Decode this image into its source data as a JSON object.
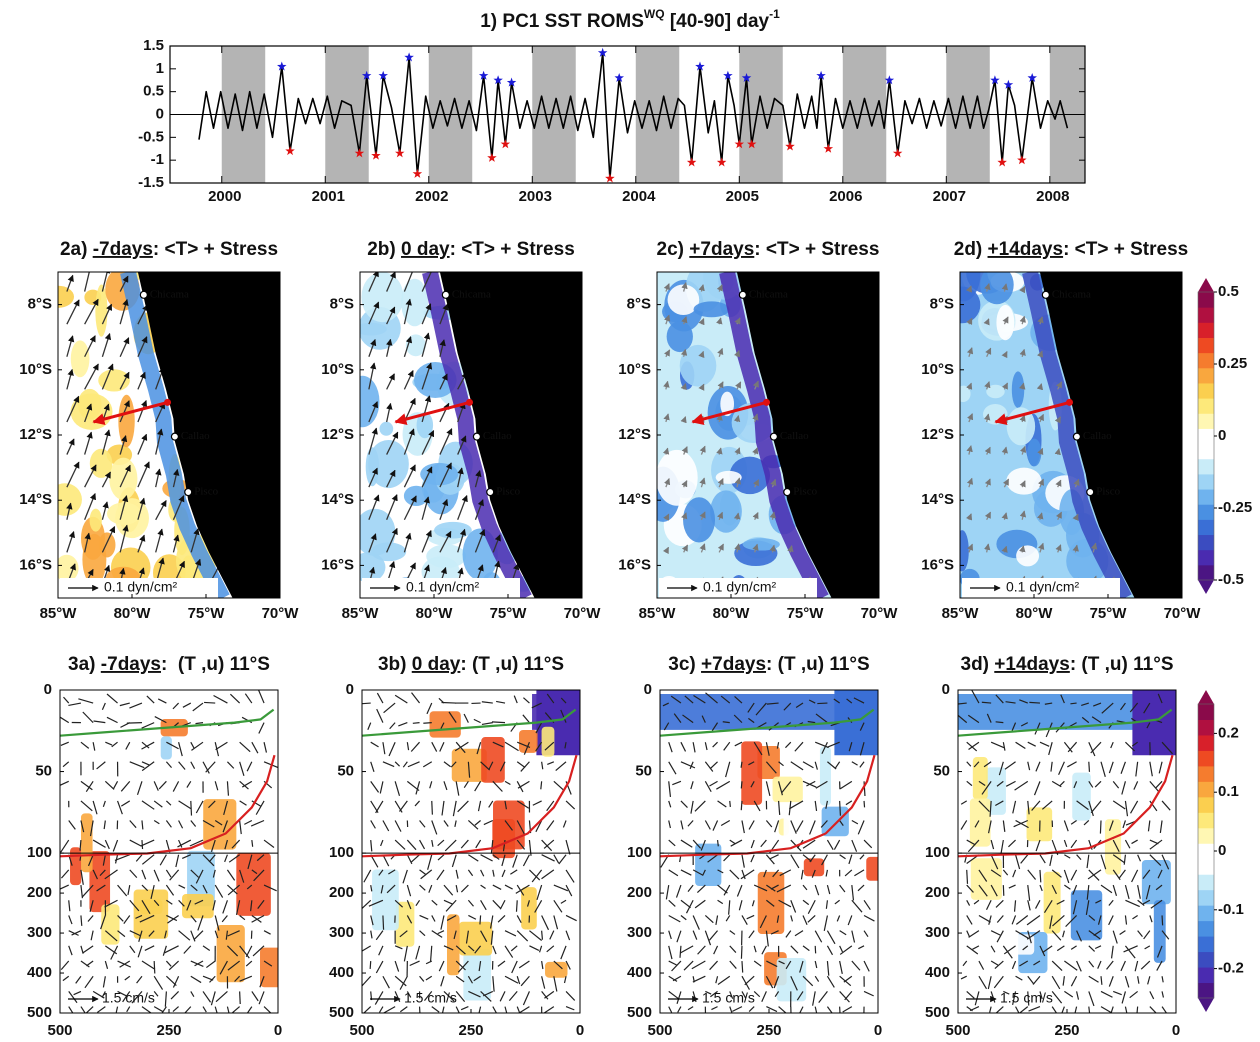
{
  "chart_data": [
    {
      "type": "line",
      "title": "1) PC1 SST ROMS",
      "title_sup": "WQ",
      "title_end": " [40-90] day",
      "title_sup2": "-1",
      "xlim": [
        1999.5,
        2008.34
      ],
      "ylim": [
        -1.5,
        1.5
      ],
      "xticks": [
        2000,
        2001,
        2002,
        2003,
        2004,
        2005,
        2006,
        2007,
        2008
      ],
      "yticks": [
        -1.5,
        -1,
        -0.5,
        0,
        0.5,
        1,
        1.5
      ],
      "shaded": [
        [
          2000,
          2000.42
        ],
        [
          2001,
          2001.42
        ],
        [
          2002,
          2002.42
        ],
        [
          2003,
          2003.42
        ],
        [
          2004,
          2004.42
        ],
        [
          2005,
          2005.42
        ],
        [
          2006,
          2006.42
        ],
        [
          2007,
          2007.42
        ],
        [
          2008,
          2008.34
        ]
      ],
      "shade_color": "#b4b4b4",
      "series": [
        {
          "color": "#000000",
          "x": [
            1999.78,
            1999.85,
            1999.92,
            1999.99,
            2000.06,
            2000.13,
            2000.2,
            2000.27,
            2000.34,
            2000.41,
            2000.49,
            2000.58,
            2000.66,
            2000.74,
            2000.81,
            2000.88,
            2000.95,
            2001.02,
            2001.09,
            2001.16,
            2001.25,
            2001.33,
            2001.4,
            2001.49,
            2001.56,
            2001.64,
            2001.72,
            2001.81,
            2001.89,
            2001.97,
            2002.04,
            2002.11,
            2002.18,
            2002.25,
            2002.32,
            2002.39,
            2002.46,
            2002.53,
            2002.61,
            2002.67,
            2002.74,
            2002.8,
            2002.88,
            2002.95,
            2003.02,
            2003.09,
            2003.16,
            2003.23,
            2003.3,
            2003.37,
            2003.44,
            2003.51,
            2003.59,
            2003.68,
            2003.75,
            2003.84,
            2003.92,
            2003.99,
            2004.06,
            2004.13,
            2004.2,
            2004.27,
            2004.34,
            2004.41,
            2004.47,
            2004.54,
            2004.62,
            2004.7,
            2004.76,
            2004.83,
            2004.89,
            2004.95,
            2005,
            2005.07,
            2005.12,
            2005.2,
            2005.27,
            2005.34,
            2005.42,
            2005.49,
            2005.56,
            2005.63,
            2005.7,
            2005.75,
            2005.79,
            2005.86,
            2005.93,
            2006,
            2006.07,
            2006.14,
            2006.21,
            2006.28,
            2006.35,
            2006.4,
            2006.45,
            2006.53,
            2006.6,
            2006.67,
            2006.74,
            2006.81,
            2006.88,
            2006.95,
            2007.02,
            2007.09,
            2007.16,
            2007.23,
            2007.3,
            2007.36,
            2007.41,
            2007.47,
            2007.54,
            2007.6,
            2007.66,
            2007.73,
            2007.83,
            2007.91,
            2007.98,
            2008.05,
            2008.1,
            2008.17
          ],
          "values": [
            -0.55,
            0.5,
            -0.3,
            0.5,
            -0.3,
            0.45,
            -0.35,
            0.5,
            -0.3,
            0.45,
            -0.5,
            1.05,
            -0.8,
            0.35,
            -0.2,
            0.35,
            -0.2,
            0.4,
            -0.3,
            0.3,
            0.2,
            -0.85,
            0.85,
            -0.9,
            0.85,
            0.15,
            -0.85,
            1.25,
            -1.3,
            0.4,
            -0.3,
            0.3,
            -0.25,
            0.35,
            -0.3,
            0.3,
            -0.35,
            0.85,
            -0.95,
            0.75,
            -0.65,
            0.7,
            -0.3,
            0.3,
            -0.3,
            0.4,
            -0.3,
            0.35,
            -0.3,
            0.4,
            -0.35,
            0.35,
            -0.5,
            1.35,
            -1.4,
            0.8,
            -0.4,
            0.3,
            -0.3,
            0.3,
            -0.35,
            0.4,
            -0.3,
            0.35,
            0.2,
            -1.05,
            1.05,
            -0.4,
            0.3,
            -1.05,
            0.85,
            0.2,
            -0.65,
            0.8,
            -0.65,
            0.4,
            -0.3,
            0.35,
            0.2,
            -0.7,
            0.45,
            -0.3,
            0.4,
            -0.3,
            0.85,
            -0.75,
            0.35,
            -0.3,
            0.3,
            -0.3,
            0.35,
            -0.25,
            0.3,
            -0.3,
            0.75,
            -0.85,
            0.3,
            -0.2,
            0.35,
            -0.3,
            0.3,
            -0.25,
            0.35,
            -0.3,
            0.4,
            -0.3,
            0.4,
            -0.3,
            0.1,
            0.75,
            -1.05,
            0.65,
            0.2,
            -1.0,
            0.8,
            -0.3,
            0.3,
            -0.1,
            0.3,
            -0.3
          ]
        },
        {
          "color": "#1a1ad6",
          "marker": "star",
          "x": [
            2000.58,
            2001.4,
            2001.56,
            2001.81,
            2002.53,
            2002.67,
            2002.8,
            2003.68,
            2003.84,
            2004.62,
            2004.89,
            2005.07,
            2005.79,
            2006.45,
            2007.47,
            2007.6,
            2007.83
          ],
          "values": [
            1.05,
            0.85,
            0.85,
            1.25,
            0.85,
            0.75,
            0.7,
            1.35,
            0.8,
            1.05,
            0.85,
            0.8,
            0.85,
            0.75,
            0.75,
            0.65,
            0.8
          ]
        },
        {
          "color": "#e01010",
          "marker": "star",
          "x": [
            2000.66,
            2001.33,
            2001.49,
            2001.72,
            2001.89,
            2002.61,
            2002.74,
            2003.75,
            2004.54,
            2004.83,
            2005,
            2005.12,
            2005.49,
            2005.86,
            2006.53,
            2007.54,
            2007.73
          ],
          "values": [
            -0.8,
            -0.85,
            -0.9,
            -0.85,
            -1.3,
            -0.95,
            -0.65,
            -1.4,
            -1.05,
            -1.05,
            -0.65,
            -0.65,
            -0.7,
            -0.75,
            -0.85,
            -1.05,
            -1.0
          ]
        }
      ]
    },
    {
      "type": "map",
      "panels": [
        {
          "label": "2a) ",
          "lag": "-7days",
          "rest": ": <T> + Stress"
        },
        {
          "label": "2b) ",
          "lag": "0 day",
          "rest": ": <T> + Stress"
        },
        {
          "label": "2c) ",
          "lag": "+7days",
          "rest": ": <T> + Stress"
        },
        {
          "label": "2d) ",
          "lag": "+14days",
          "rest": ": <T> + Stress"
        }
      ],
      "xlim": [
        -85,
        -70
      ],
      "ylim": [
        -7,
        -17
      ],
      "xticks": [
        {
          "value": -85,
          "label": "85°W"
        },
        {
          "value": -80,
          "label": "80°W"
        },
        {
          "value": -75,
          "label": "75°W"
        },
        {
          "value": -70,
          "label": "70°W"
        }
      ],
      "yticks": [
        {
          "value": -8,
          "label": "8°S"
        },
        {
          "value": -10,
          "label": "10°S"
        },
        {
          "value": -12,
          "label": "12°S"
        },
        {
          "value": -14,
          "label": "14°S"
        },
        {
          "value": -16,
          "label": "16°S"
        }
      ],
      "places": [
        {
          "name": "Chicama",
          "lon": -79.2,
          "lat": -7.7
        },
        {
          "name": "Callao",
          "lon": -77.1,
          "lat": -12.05
        },
        {
          "name": "Pisco",
          "lon": -76.2,
          "lat": -13.75
        }
      ],
      "scale_label": "0.1 dyn/cm²",
      "colorbar": {
        "lim": [
          -0.5,
          0.5
        ],
        "ticks": [
          -0.5,
          -0.25,
          0,
          0.25,
          0.5
        ],
        "colors": [
          "#4b1583",
          "#4a2bb0",
          "#3b4cc0",
          "#3a6fd6",
          "#4a90e2",
          "#6fb3ee",
          "#9ed4f5",
          "#c9ecf8",
          "#ffffff",
          "#ffffff",
          "#fff7b3",
          "#fde97a",
          "#fbcf4f",
          "#f9a73e",
          "#f57c2e",
          "#ee4a22",
          "#d8202a",
          "#b01040",
          "#8a0a4a"
        ]
      }
    },
    {
      "type": "section",
      "panels": [
        {
          "label": "3a) ",
          "lag": "-7days",
          "rest": ":  (T ,u) 11°S"
        },
        {
          "label": "3b) ",
          "lag": "0 day",
          "rest": ": (T ,u) 11°S"
        },
        {
          "label": "3c) ",
          "lag": "+7days",
          "rest": ": (T ,u) 11°S"
        },
        {
          "label": "3d) ",
          "lag": "+14days",
          "rest": ": (T ,u) 11°S"
        }
      ],
      "xlim": [
        500,
        0
      ],
      "ylim": [
        0,
        500
      ],
      "ybreak": 100,
      "xticks": [
        500,
        250,
        0
      ],
      "yticks": [
        0,
        50,
        100,
        200,
        300,
        400,
        500
      ],
      "scale_label": "1.5 cm/s",
      "colorbar": {
        "lim": [
          -0.25,
          0.25
        ],
        "ticks": [
          -0.2,
          -0.1,
          0,
          0.1,
          0.2
        ],
        "colors": [
          "#4b1583",
          "#4a2bb0",
          "#3b4cc0",
          "#3a6fd6",
          "#4a90e2",
          "#6fb3ee",
          "#9ed4f5",
          "#c9ecf8",
          "#ffffff",
          "#ffffff",
          "#fff7b3",
          "#fde97a",
          "#fbcf4f",
          "#f9a73e",
          "#f57c2e",
          "#ee4a22",
          "#d8202a",
          "#b01040",
          "#8a0a4a"
        ]
      }
    }
  ]
}
